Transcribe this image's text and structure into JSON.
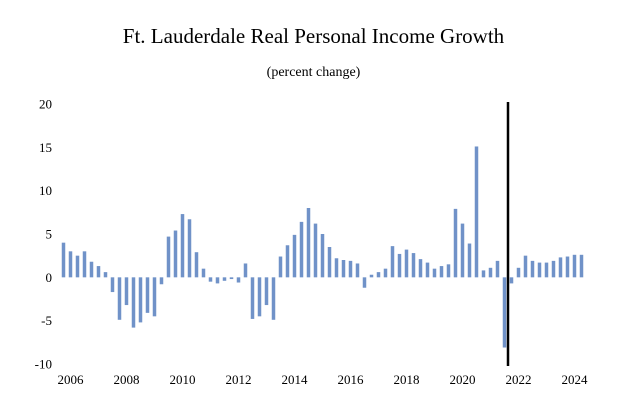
{
  "chart_data": {
    "type": "bar",
    "title": "Ft. Lauderdale Real Personal Income Growth",
    "subtitle": "(percent change)",
    "xlabel": "",
    "ylabel": "",
    "ylim": [
      -10,
      20
    ],
    "yticks": [
      20,
      15,
      10,
      5,
      0,
      -5,
      -10
    ],
    "xtick_labels": [
      "2006",
      "2008",
      "2010",
      "2012",
      "2014",
      "2016",
      "2018",
      "2020",
      "2022",
      "2024"
    ],
    "x_start": 2005.75,
    "x_step": 0.25,
    "divider_x": 2021.75,
    "grid": false,
    "bar_color": "#7092c8",
    "divider_color": "#000000",
    "values": [
      4.0,
      3.0,
      2.5,
      3.0,
      1.8,
      1.3,
      0.6,
      -1.7,
      -4.9,
      -3.2,
      -5.8,
      -5.2,
      -4.1,
      -4.5,
      -0.8,
      4.7,
      5.4,
      7.3,
      6.7,
      2.9,
      1.0,
      -0.5,
      -0.7,
      -0.4,
      -0.2,
      -0.6,
      1.6,
      -4.8,
      -4.5,
      -3.2,
      -4.9,
      2.4,
      3.7,
      4.9,
      6.4,
      8.0,
      6.2,
      5.0,
      3.5,
      2.2,
      2.0,
      1.9,
      1.6,
      -1.2,
      0.3,
      0.6,
      1.0,
      3.6,
      2.7,
      3.2,
      2.8,
      2.1,
      1.7,
      1.0,
      1.3,
      1.5,
      7.9,
      6.2,
      3.9,
      15.1,
      0.8,
      1.1,
      1.9,
      -8.1,
      -0.7,
      1.1,
      2.5,
      1.9,
      1.7,
      1.7,
      1.9,
      2.3,
      2.4,
      2.6,
      2.6
    ]
  }
}
